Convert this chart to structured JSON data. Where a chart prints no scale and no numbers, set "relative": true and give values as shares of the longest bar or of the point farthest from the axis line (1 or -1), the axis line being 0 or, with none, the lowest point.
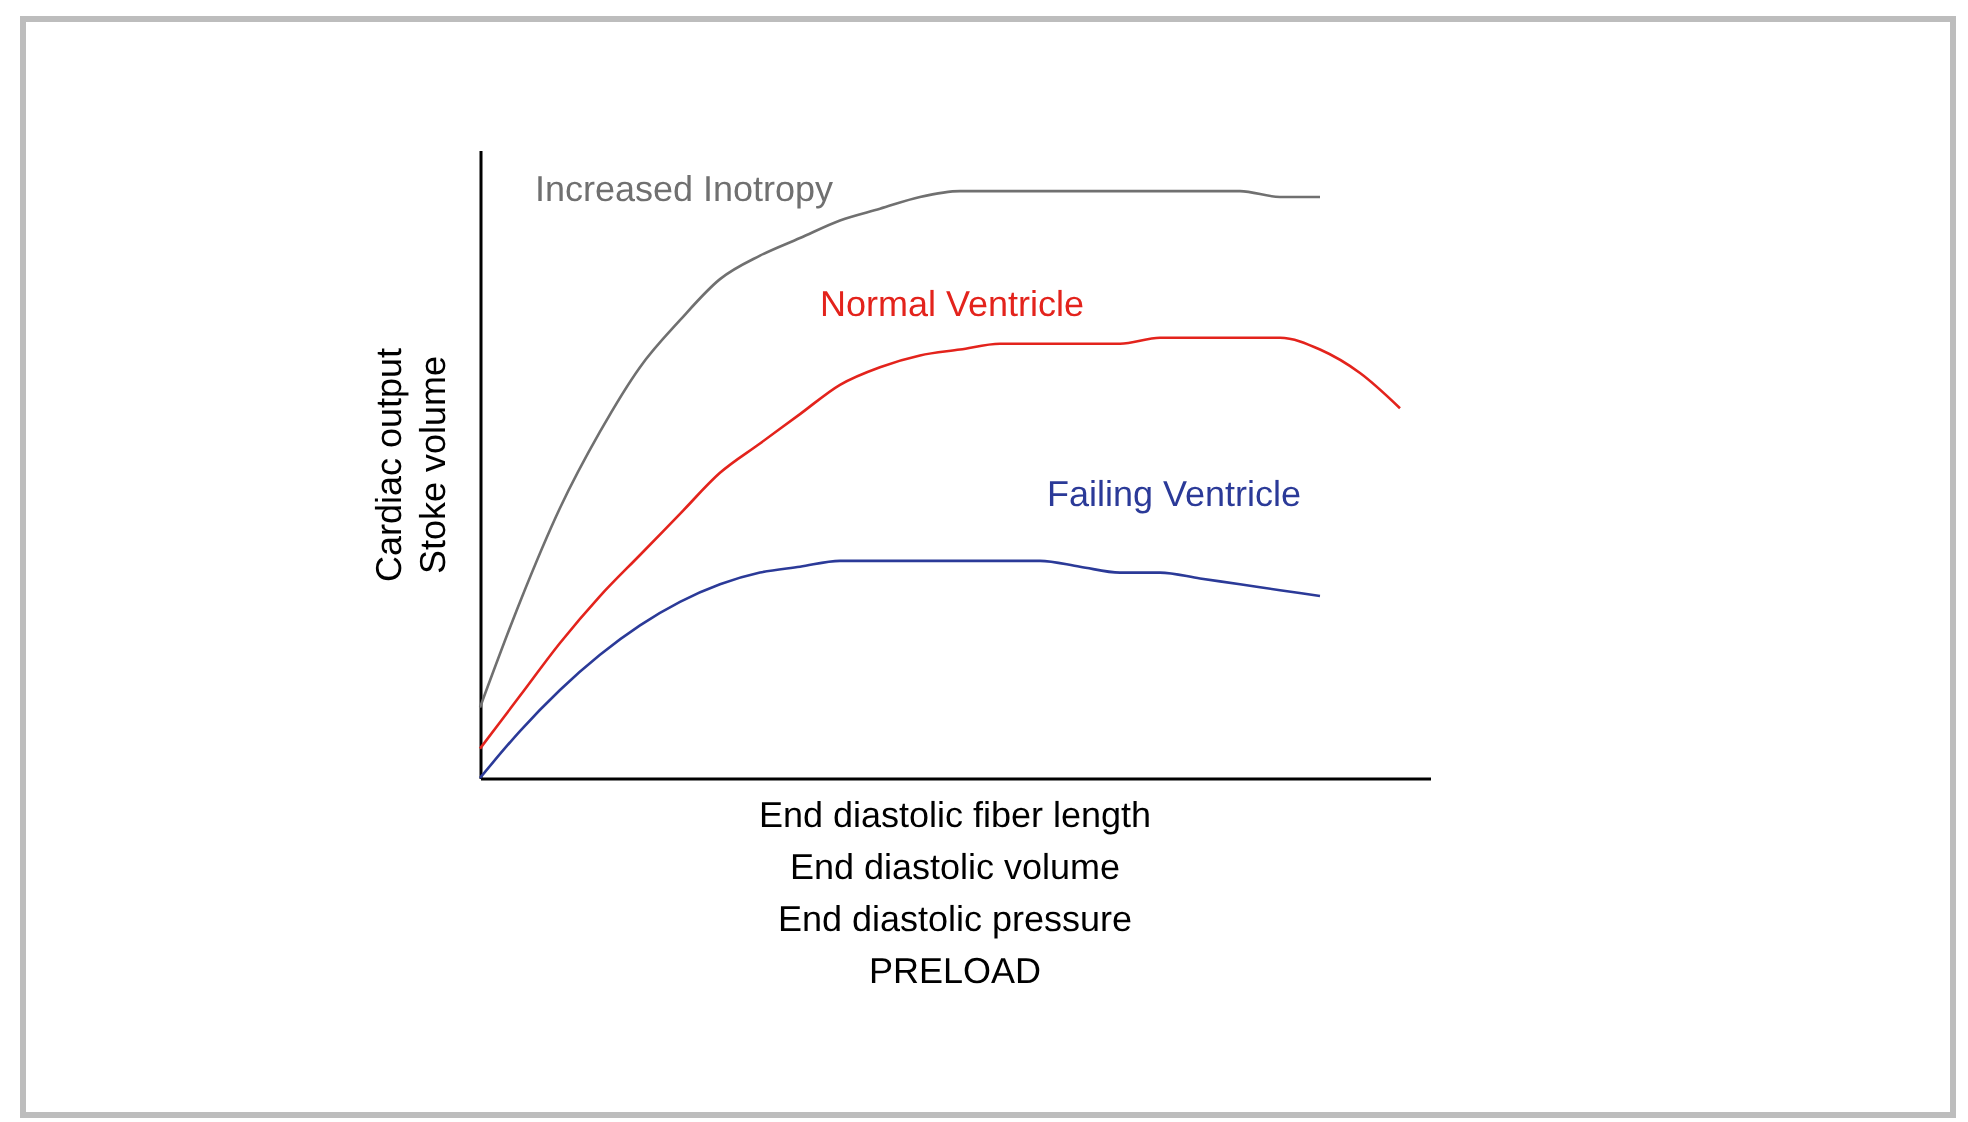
{
  "chart_data": {
    "type": "line",
    "relative": true,
    "tick_labels": false,
    "grid": false,
    "legend": false,
    "marker": "none",
    "line_style": "solid",
    "xlabel": "End diastolic fiber length\nEnd diastolic volume\nEnd diastolic pressure\nPRELOAD",
    "ylabel": "Cardiac output\nStoke volume",
    "categories": [
      null,
      null,
      null,
      null,
      null,
      null,
      null,
      null,
      null,
      null,
      null,
      null,
      null,
      null,
      null,
      null,
      null,
      null,
      null,
      null,
      null,
      null,
      null,
      null
    ],
    "series": [
      {
        "name": "Increased Inotropy",
        "color": "#707070",
        "values": [
          0.12,
          0.3,
          0.46,
          0.59,
          0.7,
          0.78,
          0.85,
          0.89,
          0.92,
          0.95,
          0.97,
          0.99,
          1.0,
          1,
          1,
          1,
          1,
          1,
          1.0,
          1.0,
          0.99,
          0.99,
          null,
          null
        ]
      },
      {
        "name": "Normal Ventricle",
        "color": "#e3231c",
        "values": [
          0.05,
          0.14,
          0.23,
          0.31,
          0.38,
          0.45,
          0.52,
          0.57,
          0.62,
          0.67,
          0.7,
          0.72,
          0.73,
          0.74,
          0.74,
          0.74,
          0.74,
          0.75,
          0.75,
          0.75,
          0.75,
          0.73,
          0.69,
          0.63
        ]
      },
      {
        "name": "Failing Ventricle",
        "color": "#2b3a98",
        "values": [
          0,
          0.08,
          0.15,
          0.21,
          0.26,
          0.3,
          0.33,
          0.35,
          0.36,
          0.37,
          0.37,
          0.37,
          0.37,
          0.37,
          0.37,
          0.36,
          0.35,
          0.35,
          0.34,
          0.33,
          0.32,
          0.31,
          null,
          null
        ]
      }
    ]
  }
}
